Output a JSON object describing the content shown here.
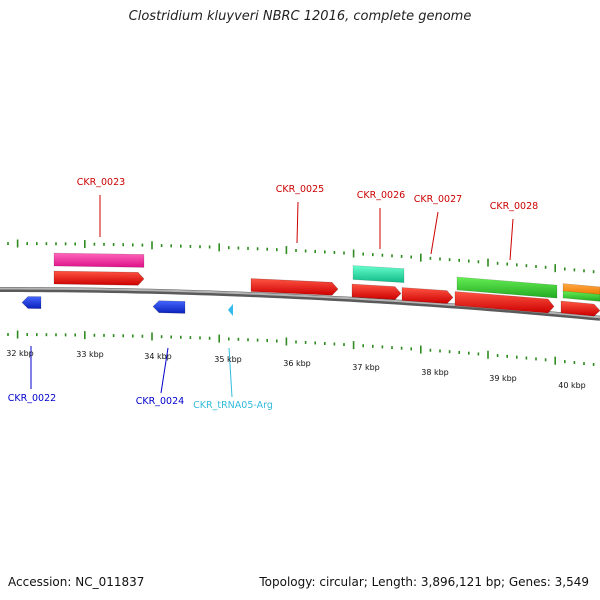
{
  "header": {
    "title": "Clostridium kluyveri NBRC 12016, complete genome"
  },
  "footer": {
    "accession": "Accession: NC_011837",
    "summary": "Topology: circular; Length: 3,896,121 bp; Genes: 3,549"
  },
  "chart_data": {
    "type": "genome-map",
    "scale_labels": [
      "32 kbp",
      "33 kbp",
      "34 kbp",
      "35 kbp",
      "36 kbp",
      "37 kbp",
      "38 kbp",
      "39 kbp",
      "40 kbp"
    ],
    "colors": {
      "backbone": "#808080",
      "tick": "#2e8b1f",
      "label_forward": "#cc0000",
      "label_reverse": "#0000cc",
      "label_trna": "#33bbdd",
      "cds_forward": "#ee1111",
      "cds_reverse": "#1133dd",
      "trna": "#33bbee",
      "func_pink": "#ee3399",
      "func_cyan": "#22ddaa",
      "func_green": "#33cc33",
      "func_orange": "#ff8811"
    },
    "genes": [
      {
        "label": "CKR_0022",
        "strand": "reverse",
        "type": "cds"
      },
      {
        "label": "CKR_0023",
        "strand": "forward",
        "type": "cds"
      },
      {
        "label": "CKR_0024",
        "strand": "reverse",
        "type": "cds"
      },
      {
        "label": "CKR_tRNA05-Arg",
        "strand": "reverse",
        "type": "trna"
      },
      {
        "label": "CKR_0025",
        "strand": "forward",
        "type": "cds"
      },
      {
        "label": "CKR_0026",
        "strand": "forward",
        "type": "cds"
      },
      {
        "label": "CKR_0027",
        "strand": "forward",
        "type": "cds"
      },
      {
        "label": "CKR_0028",
        "strand": "forward",
        "type": "cds"
      }
    ]
  }
}
